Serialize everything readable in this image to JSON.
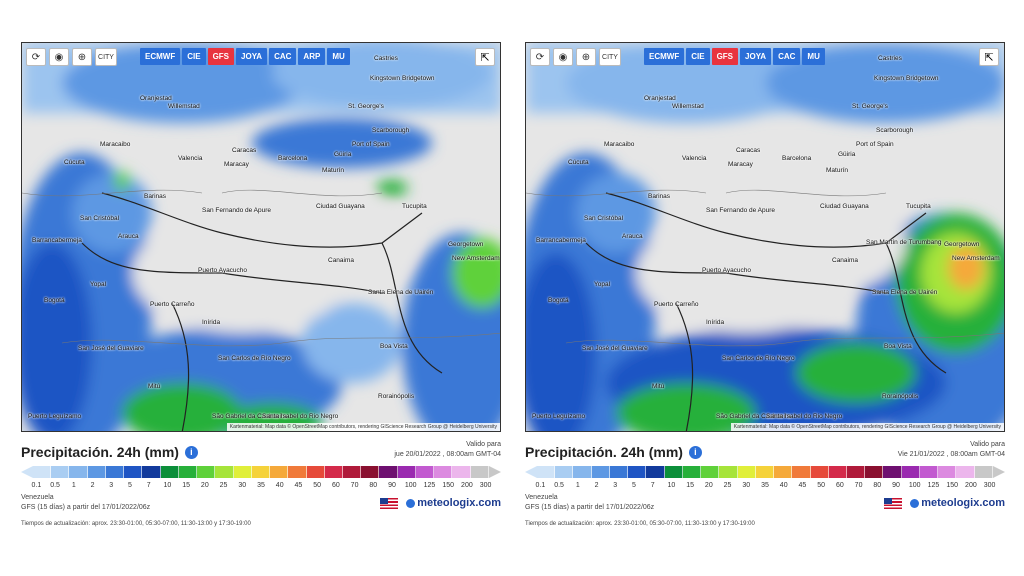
{
  "toolbar": {
    "tools": [
      "refresh-icon",
      "pin-icon",
      "zoom-icon",
      "city-icon"
    ],
    "city_label": "CITY",
    "models": [
      "ECMWF",
      "CIE",
      "GFS",
      "JOYA",
      "CAC",
      "ARP",
      "MU"
    ],
    "active_model": "GFS"
  },
  "attribution": "Kartenmaterial: Map data © OpenStreetMap contributors, rendering GIScience Research Group @ Heidelberg University",
  "cities": [
    {
      "name": "Castries"
    },
    {
      "name": "Kingstown"
    },
    {
      "name": "Bridgetown"
    },
    {
      "name": "Oranjestad"
    },
    {
      "name": "Willemstad"
    },
    {
      "name": "St. George's"
    },
    {
      "name": "Scarborough"
    },
    {
      "name": "Port of Spain"
    },
    {
      "name": "Maracaibo"
    },
    {
      "name": "Caracas"
    },
    {
      "name": "Valencia"
    },
    {
      "name": "Maracay"
    },
    {
      "name": "Barcelona"
    },
    {
      "name": "Maturín"
    },
    {
      "name": "Güiria"
    },
    {
      "name": "Cúcuta"
    },
    {
      "name": "Barinas"
    },
    {
      "name": "Ciudad Guayana"
    },
    {
      "name": "San Fernando de Apure"
    },
    {
      "name": "Georgetown"
    },
    {
      "name": "New Amsterdam"
    },
    {
      "name": "San Cristóbal"
    },
    {
      "name": "Barrancabermeja"
    },
    {
      "name": "Bogotá"
    },
    {
      "name": "Yopal"
    },
    {
      "name": "Arauca"
    },
    {
      "name": "Puerto Ayacucho"
    },
    {
      "name": "Canaima"
    },
    {
      "name": "Santa Elena de Uairén"
    },
    {
      "name": "Puerto Carreño"
    },
    {
      "name": "Inírida"
    },
    {
      "name": "San José del Guaviare"
    },
    {
      "name": "Boa Vista"
    },
    {
      "name": "San Carlos de Río Negro"
    },
    {
      "name": "Mitú"
    },
    {
      "name": "São Gabriel da Cachoeira"
    },
    {
      "name": "Santa Isabel do Rio Negro"
    },
    {
      "name": "Rorainópolis"
    },
    {
      "name": "Puerto Leguízamo"
    },
    {
      "name": "Tucupita"
    },
    {
      "name": "San Martín de Turumbang"
    }
  ],
  "panels": [
    {
      "title": "Precipitación. 24h (mm)",
      "valid_label": "Valido para",
      "valid_date": "jue 20/01/2022 , 08:00am GMT-04",
      "region": "Venezuela",
      "model_info": "GFS (15 días) a partir del 17/01/2022/06z",
      "brand": "meteologix.com",
      "update_times": "Tiempos de actualización: aprox. 23:30-01:00, 05:30-07:00, 11:30-13:00 y 17:30-19:00"
    },
    {
      "title": "Precipitación. 24h (mm)",
      "valid_label": "Valido para",
      "valid_date": "Vie 21/01/2022 , 08:00am GMT-04",
      "region": "Venezuela",
      "model_info": "GFS (15 días) a partir del 17/01/2022/06z",
      "brand": "meteologix.com",
      "update_times": "Tiempos de actualización: aprox. 23:30-01:00, 05:30-07:00, 11:30-13:00 y 17:30-19:00"
    }
  ],
  "legend": {
    "ticks": [
      "0.1",
      "0.5",
      "1",
      "2",
      "3",
      "5",
      "7",
      "10",
      "15",
      "20",
      "25",
      "30",
      "35",
      "40",
      "45",
      "50",
      "60",
      "70",
      "80",
      "90",
      "100",
      "125",
      "150",
      "200",
      "300"
    ],
    "colors": [
      "#cfe3f7",
      "#a9cdf2",
      "#86b6ec",
      "#5d98e3",
      "#3a78d6",
      "#1f55c4",
      "#123a9c",
      "#0c8f3a",
      "#27b03a",
      "#5fd13a",
      "#a6e43a",
      "#e0ef3a",
      "#f5d23a",
      "#f5a93a",
      "#f07a3a",
      "#e64a3a",
      "#d42a4a",
      "#b01a3a",
      "#8a1030",
      "#6e1070",
      "#9a2ab0",
      "#c25ad0",
      "#dc8ae0",
      "#ecb6ec",
      "#c8c8c8"
    ]
  }
}
